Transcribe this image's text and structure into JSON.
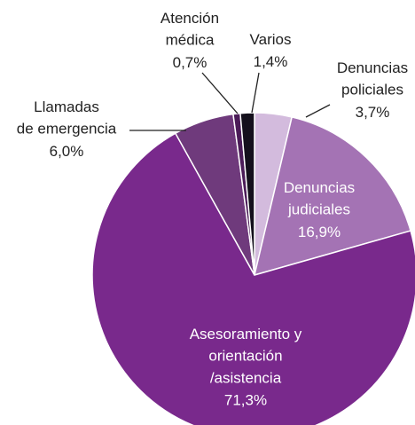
{
  "chart_data": {
    "type": "pie",
    "categories": [
      "Denuncias\npoliciales",
      "Denuncias\njudiciales",
      "Asesoramiento y\norientación\n/asistencia",
      "Llamadas\nde emergencia",
      "Atención\nmédica",
      "Varios"
    ],
    "values": [
      3.7,
      16.9,
      71.3,
      6.0,
      0.7,
      1.4
    ],
    "value_labels": [
      "3,7%",
      "16,9%",
      "71,3%",
      "6,0%",
      "0,7%",
      "1,4%"
    ],
    "colors": [
      "#d3bbdd",
      "#a473b4",
      "#79298c",
      "#6f3a7c",
      "#4b1c58",
      "#14101c"
    ]
  }
}
